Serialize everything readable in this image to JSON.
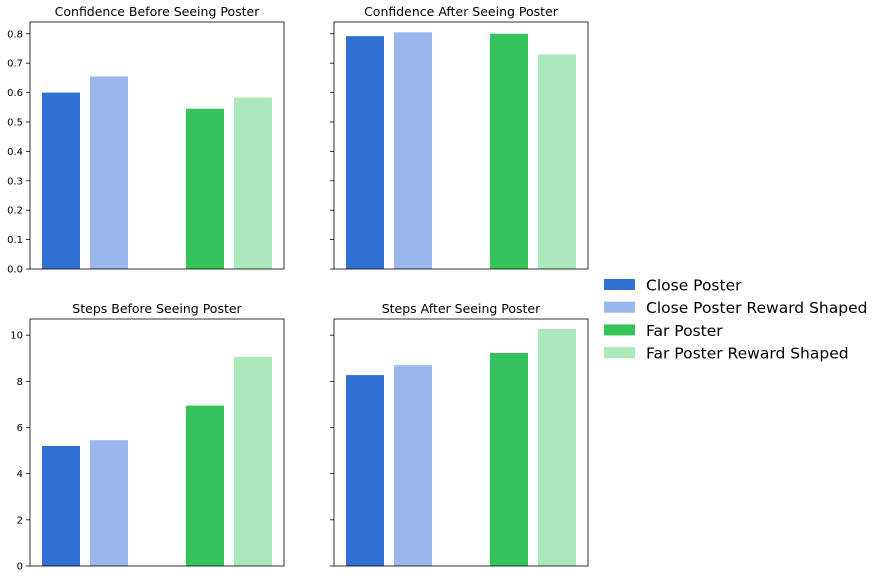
{
  "chart_data": [
    {
      "type": "bar",
      "title": "Confidence Before Seeing Poster",
      "categories": [
        "Close Poster",
        "Close Poster Reward Shaped",
        "Far Poster",
        "Far Poster Reward Shaped"
      ],
      "values": [
        0.6,
        0.655,
        0.545,
        0.583
      ],
      "ylim": [
        0,
        0.84
      ],
      "yticks": [
        0.0,
        0.1,
        0.2,
        0.3,
        0.4,
        0.5,
        0.6,
        0.7,
        0.8
      ],
      "ytick_labels": [
        "0.0",
        "0.1",
        "0.2",
        "0.3",
        "0.4",
        "0.5",
        "0.6",
        "0.7",
        "0.8"
      ],
      "show_ytick_labels": true
    },
    {
      "type": "bar",
      "title": "Confidence After Seeing Poster",
      "categories": [
        "Close Poster",
        "Close Poster Reward Shaped",
        "Far Poster",
        "Far Poster Reward Shaped"
      ],
      "values": [
        0.792,
        0.805,
        0.8,
        0.73
      ],
      "ylim": [
        0,
        0.84
      ],
      "yticks": [
        0.0,
        0.1,
        0.2,
        0.3,
        0.4,
        0.5,
        0.6,
        0.7,
        0.8
      ],
      "ytick_labels": [
        "",
        "",
        "",
        "",
        "",
        "",
        "",
        "",
        ""
      ],
      "show_ytick_labels": false
    },
    {
      "type": "bar",
      "title": "Steps Before Seeing Poster",
      "categories": [
        "Close Poster",
        "Close Poster Reward Shaped",
        "Far Poster",
        "Far Poster Reward Shaped"
      ],
      "values": [
        5.2,
        5.45,
        6.95,
        9.05
      ],
      "ylim": [
        0,
        10.7
      ],
      "yticks": [
        0,
        2,
        4,
        6,
        8,
        10
      ],
      "ytick_labels": [
        "0",
        "2",
        "4",
        "6",
        "8",
        "10"
      ],
      "show_ytick_labels": true
    },
    {
      "type": "bar",
      "title": "Steps After Seeing Poster",
      "categories": [
        "Close Poster",
        "Close Poster Reward Shaped",
        "Far Poster",
        "Far Poster Reward Shaped"
      ],
      "values": [
        8.27,
        8.7,
        9.23,
        10.27
      ],
      "ylim": [
        0,
        10.7
      ],
      "yticks": [
        0,
        2,
        4,
        6,
        8,
        10
      ],
      "ytick_labels": [
        "",
        "",
        "",
        "",
        "",
        ""
      ],
      "show_ytick_labels": false
    }
  ],
  "legend": {
    "placement": "right",
    "items": [
      {
        "label": "Close Poster",
        "color": "#3070d2"
      },
      {
        "label": "Close Poster Reward Shaped",
        "color": "#9ab8ee"
      },
      {
        "label": "Far Poster",
        "color": "#35c45b"
      },
      {
        "label": "Far Poster Reward Shaped",
        "color": "#abe9bb"
      }
    ]
  },
  "colors": [
    "#3070d2",
    "#9ab8ee",
    "#35c45b",
    "#abe9bb"
  ]
}
